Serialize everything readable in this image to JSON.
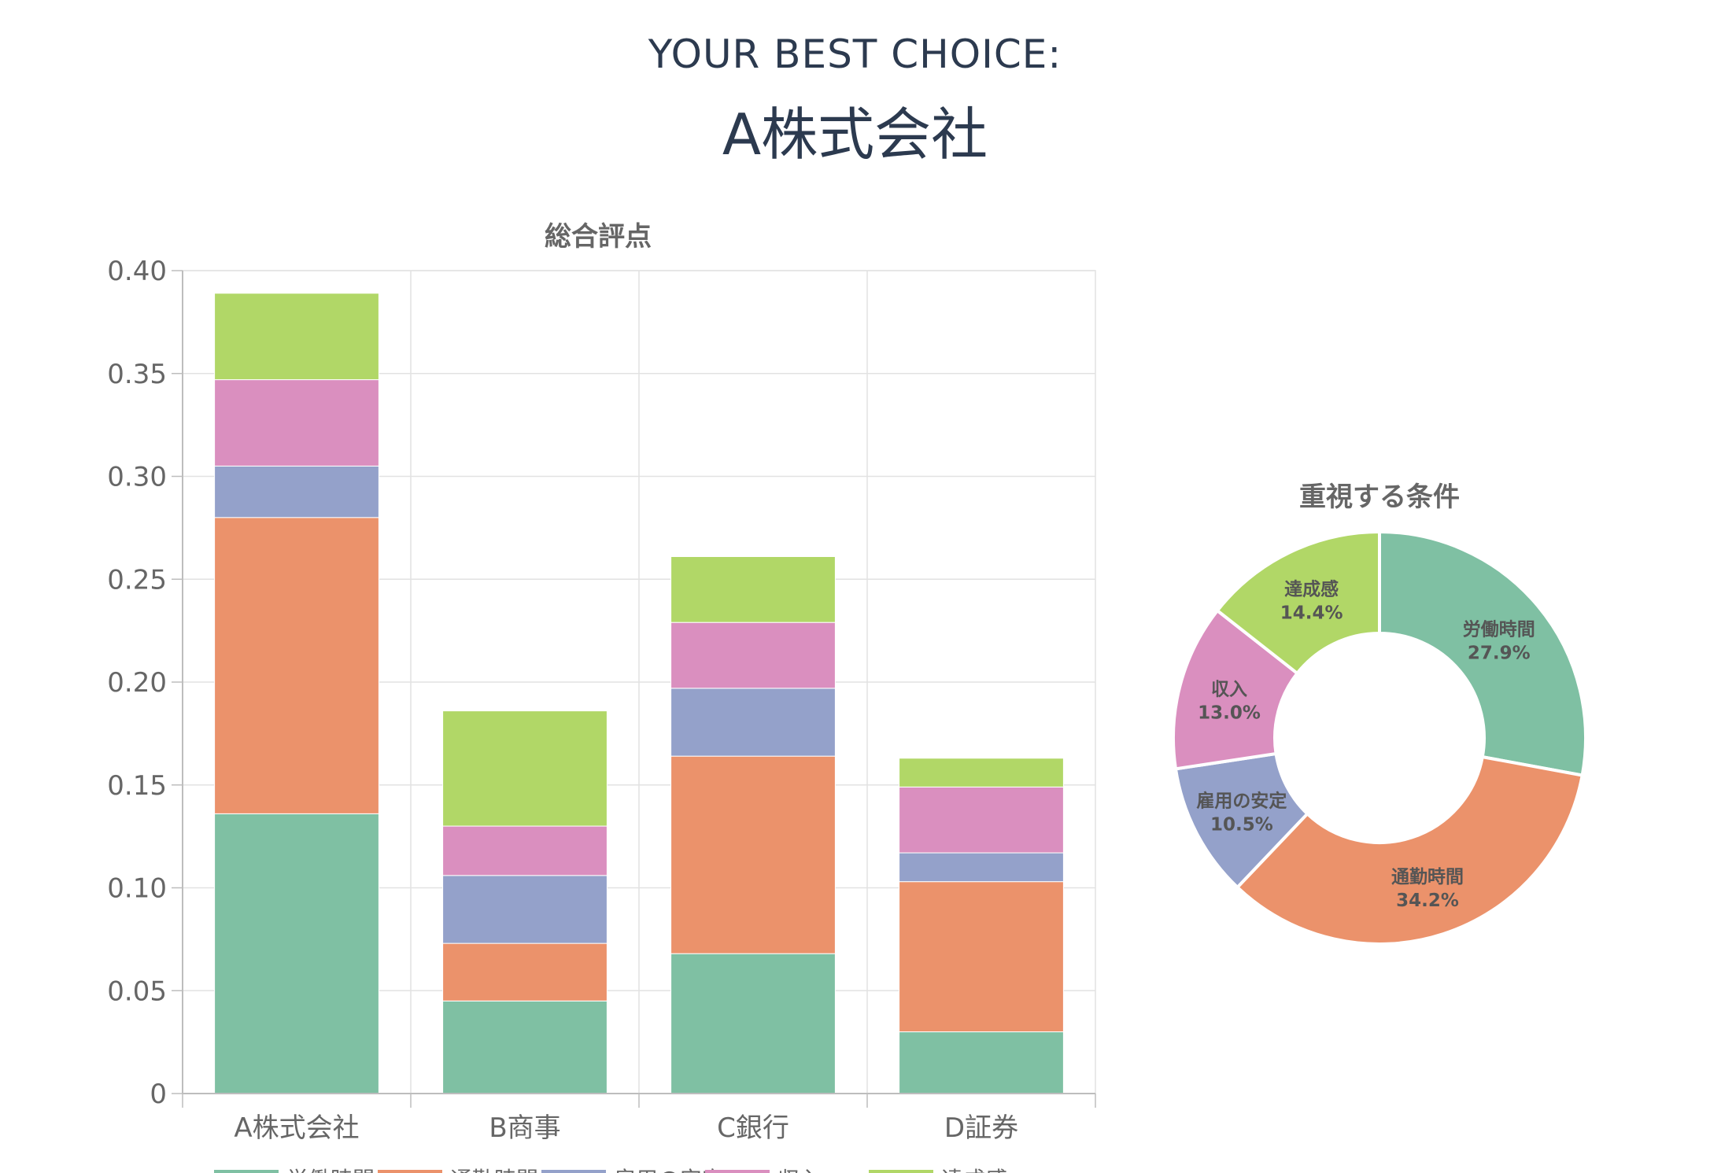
{
  "header": {
    "subtitle": "YOUR BEST CHOICE:",
    "choice": "A株式会社"
  },
  "colors": {
    "series": [
      "#7fc0a3",
      "#eb926b",
      "#94a1ca",
      "#da8fbf",
      "#b1d767"
    ],
    "grid": "#e2e2e2",
    "axis": "#bdbdbd",
    "text": "#666666",
    "header": "#2c3a4f"
  },
  "chart_data": [
    {
      "type": "bar",
      "stacked": true,
      "title": "総合評点",
      "categories": [
        "A株式会社",
        "B商事",
        "C銀行",
        "D証券"
      ],
      "series": [
        {
          "name": "労働時間",
          "values": [
            0.136,
            0.045,
            0.068,
            0.03
          ]
        },
        {
          "name": "通勤時間",
          "values": [
            0.144,
            0.028,
            0.096,
            0.073
          ]
        },
        {
          "name": "雇用の安定",
          "values": [
            0.025,
            0.033,
            0.033,
            0.014
          ]
        },
        {
          "name": "収入",
          "values": [
            0.042,
            0.024,
            0.032,
            0.032
          ]
        },
        {
          "name": "達成感",
          "values": [
            0.042,
            0.056,
            0.032,
            0.014
          ]
        }
      ],
      "ylim": [
        0,
        0.4
      ],
      "yticks": [
        "0",
        "0.05",
        "0.10",
        "0.15",
        "0.20",
        "0.25",
        "0.30",
        "0.35",
        "0.40"
      ],
      "grid": true,
      "legend": "bottom"
    },
    {
      "type": "pie",
      "donut": true,
      "title": "重視する条件",
      "slices": [
        {
          "label": "労働時間",
          "value": 27.9,
          "text": "27.9%"
        },
        {
          "label": "通勤時間",
          "value": 34.2,
          "text": "34.2%"
        },
        {
          "label": "雇用の安定",
          "value": 10.5,
          "text": "10.5%"
        },
        {
          "label": "収入",
          "value": 13.0,
          "text": "13.0%"
        },
        {
          "label": "達成感",
          "value": 14.4,
          "text": "14.4%"
        }
      ]
    }
  ]
}
